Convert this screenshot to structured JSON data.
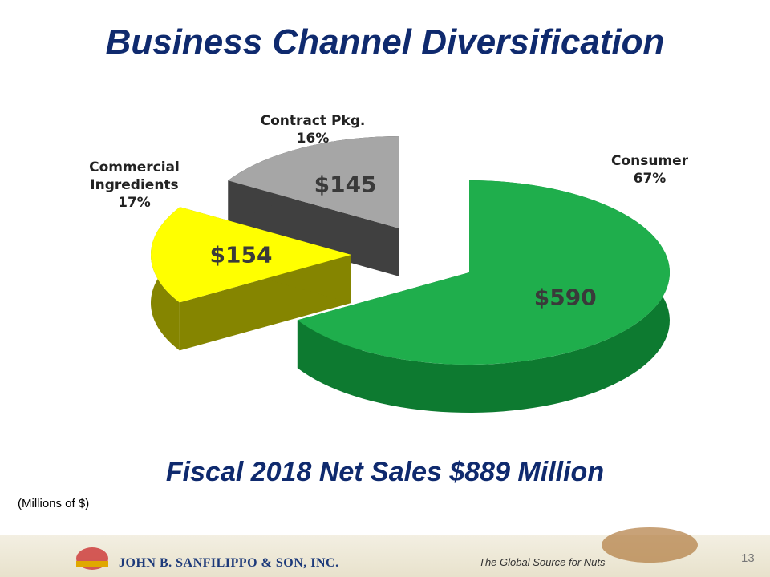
{
  "chart_data": {
    "type": "pie",
    "title": "Business Channel Diversification",
    "subtitle": "Fiscal 2018 Net Sales $889 Million",
    "note": "(Millions of $)",
    "categories": [
      "Consumer",
      "Commercial Ingredients",
      "Contract Pkg."
    ],
    "values": [
      590,
      154,
      145
    ],
    "value_labels": [
      "$590",
      "$154",
      "$145"
    ],
    "share_labels": [
      "67%",
      "17%",
      "16%"
    ],
    "colors": [
      "#1fae4c",
      "#ffff00",
      "#a6a6a6"
    ],
    "side_colors": [
      "#0d7a30",
      "#858500",
      "#404040"
    ]
  },
  "footer": {
    "company": "JOHN B. SANFILIPPO & SON, INC.",
    "tagline": "The Global Source for Nuts",
    "page_number": 13
  }
}
